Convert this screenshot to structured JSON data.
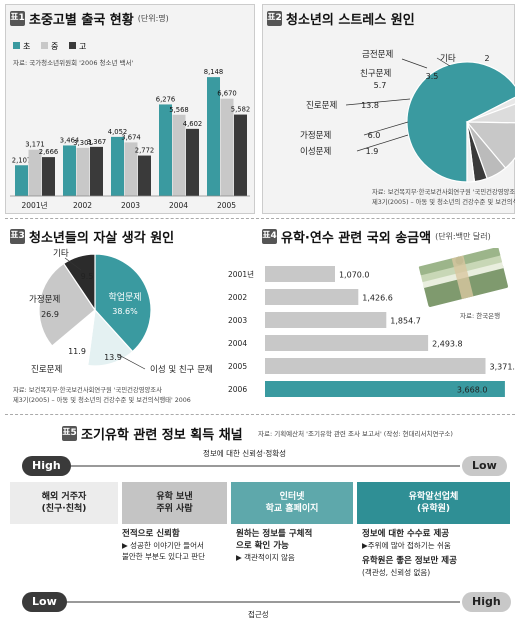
{
  "panel1": {
    "badge": "표1",
    "title": "초중고별 출국 현황",
    "unit": "(단위:명)",
    "source": "자료: 국가청소년위원회 '2006 청소년 백서'",
    "legend": [
      "초",
      "중",
      "고"
    ]
  },
  "panel2": {
    "badge": "표2",
    "title": "청소년의 스트레스 원인",
    "source_line1": "자료: 보건복지부·한국보건사회연구원 '국민건강영양조사",
    "source_line2": "제3기(2005) – 아동 및 청소년의 건강수준 및 보건의식행태' 2006"
  },
  "panel3": {
    "badge": "표3",
    "title": "청소년들의 자살 생각 원인",
    "source_line1": "자료: 보건복지부·한국보건사회연구원 '국민건강영양조사",
    "source_line2": "제3기(2005) – 아동 및 청소년의 건강수준 및 보건의식행태' 2006"
  },
  "panel4": {
    "badge": "표4",
    "title": "유학·연수 관련 국외 송금액",
    "unit": "(단위:백만 달러)",
    "photo_source": "자료: 한국은행"
  },
  "panel5": {
    "badge": "표5",
    "title": "조기유학 관련 정보 획득 채널",
    "source": "자료: 기획예산처 '조기유학 관련 조사 보고서' (작성: 현대리서치연구소)",
    "top_axis_label": "정보에 대한 신뢰성·정확성",
    "bottom_axis_label": "접근성",
    "high": "High",
    "low": "Low",
    "channels": [
      {
        "line1": "해외 거주자",
        "line2": "(친구·친척)",
        "color": "#ececec",
        "text_color": "#222"
      },
      {
        "line1": "유학 보낸",
        "line2": "주위 사람",
        "color": "#c4c4c4",
        "text_color": "#222"
      },
      {
        "line1": "인터넷",
        "line2": "학교 홈페이지",
        "color": "#5ea8ab",
        "text_color": "#ffffff"
      },
      {
        "line1": "유학알선업체",
        "line2": "(유학원)",
        "color": "#2f8f95",
        "text_color": "#ffffff"
      }
    ],
    "desc": {
      "col2_head": "전적으로 신뢰함",
      "col2_body1": "▶ 성공한 이야기만 들어서",
      "col2_body2": "불안한 부분도 있다고 판단",
      "col3_head1": "원하는 정보를 구체적",
      "col3_head2": "으로 확인 가능",
      "col3_body": "▶ 객관적이지 않음",
      "col4_head": "정보에 대한 수수료 제공",
      "col4_body": "▶주위에 많아 접하기는 쉬움",
      "col4_head2": "유학원은 좋은 정보만 제공",
      "col4_body2": "(객관성, 신뢰성 없음)"
    }
  },
  "colors": {
    "teal": "#3a9aa0",
    "grey": "#c8c8c8",
    "dark": "#3a3a3a"
  },
  "chart_data": [
    {
      "type": "bar",
      "title": "초중고별 출국 현황",
      "categories": [
        "2001년",
        "2002",
        "2003",
        "2004",
        "2005"
      ],
      "series": [
        {
          "name": "초",
          "values": [
            2107,
            3464,
            4052,
            6276,
            8148
          ]
        },
        {
          "name": "중",
          "values": [
            3171,
            3301,
            3674,
            5568,
            6670
          ]
        },
        {
          "name": "고",
          "values": [
            2666,
            3367,
            2772,
            4602,
            5582
          ]
        }
      ],
      "value_labels": [
        [
          "2,107",
          "3,464",
          "4,052",
          "6,276",
          "8,148"
        ],
        [
          "3,171",
          "3,301",
          "3,674",
          "5,568",
          "6,670"
        ],
        [
          "2,666",
          "3,367",
          "2,772",
          "4,602",
          "5,582"
        ]
      ],
      "ylim": [
        0,
        8500
      ]
    },
    {
      "type": "pie",
      "title": "청소년의 스트레스 원인",
      "labels": [
        "성적",
        "이성문제",
        "가정문제",
        "진로문제",
        "친구문제",
        "금전문제",
        "기타"
      ],
      "values": [
        68.2,
        1.9,
        6.0,
        13.8,
        5.7,
        3.5,
        2.0
      ],
      "value_labels": [
        "",
        "1.9",
        "6.0",
        "13.8",
        "5.7",
        "3.5",
        "2"
      ]
    },
    {
      "type": "pie",
      "title": "청소년들의 자살 생각 원인",
      "labels": [
        "학업문제",
        "이성 및 친구 문제",
        "진로문제",
        "가정문제",
        "기타"
      ],
      "values": [
        38.6,
        13.9,
        11.9,
        26.9,
        9.5
      ],
      "value_labels": [
        "38.6%",
        "13.9",
        "11.9",
        "26.9",
        "9.5"
      ]
    },
    {
      "type": "bar",
      "orientation": "horizontal",
      "title": "유학·연수 관련 국외 송금액",
      "categories": [
        "2001년",
        "2002",
        "2003",
        "2004",
        "2005",
        "2006"
      ],
      "values": [
        1070.0,
        1426.6,
        1854.7,
        2493.8,
        3371.4,
        3668.0
      ],
      "value_labels": [
        "1,070.0",
        "1,426.6",
        "1,854.7",
        "2,493.8",
        "3,371.4",
        "3,668.0"
      ],
      "xlim": [
        0,
        3700
      ]
    }
  ]
}
